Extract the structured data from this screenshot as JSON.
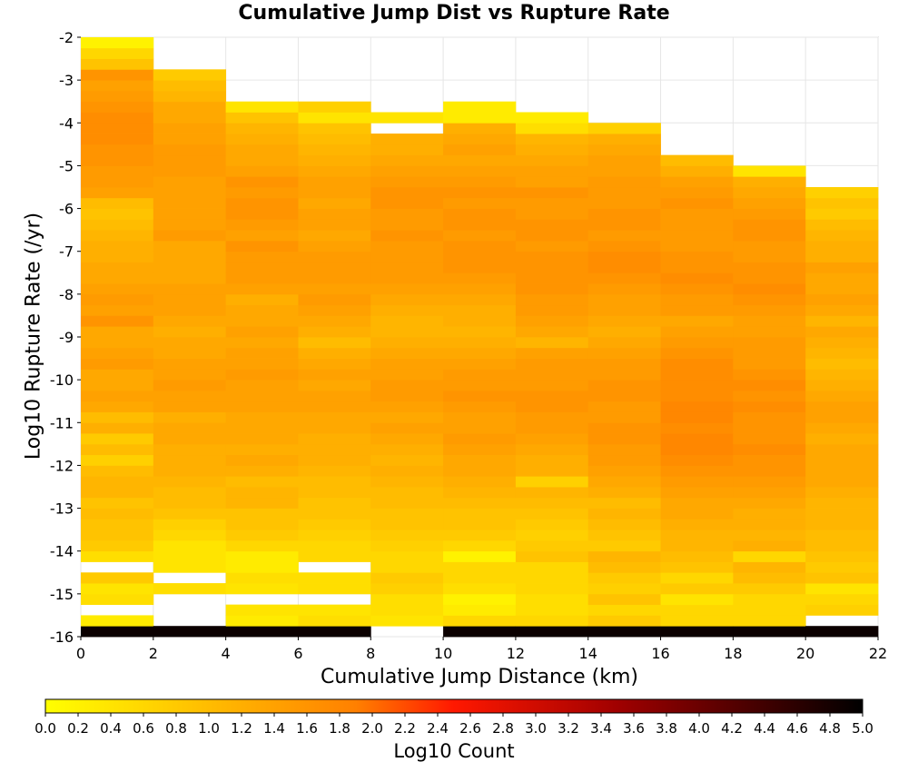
{
  "chart_data": {
    "type": "heatmap",
    "title": "Cumulative Jump Dist vs Rupture Rate",
    "xlabel": "Cumulative Jump Distance (km)",
    "ylabel": "Log10 Rupture Rate (/yr)",
    "colorbar_label": "Log10 Count",
    "xlim": [
      0,
      22
    ],
    "ylim": [
      -16,
      -2
    ],
    "x_ticks": [
      0,
      2,
      4,
      6,
      8,
      10,
      12,
      14,
      16,
      18,
      20,
      22
    ],
    "y_ticks": [
      -2,
      -3,
      -4,
      -5,
      -6,
      -7,
      -8,
      -9,
      -10,
      -11,
      -12,
      -13,
      -14,
      -15,
      -16
    ],
    "colorbar_range": [
      0.0,
      5.0
    ],
    "colorbar_ticks": [
      "0.0",
      "0.2",
      "0.4",
      "0.6",
      "0.8",
      "1.0",
      "1.2",
      "1.4",
      "1.6",
      "1.8",
      "2.0",
      "2.2",
      "2.4",
      "2.6",
      "2.8",
      "3.0",
      "3.2",
      "3.4",
      "3.6",
      "3.8",
      "4.0",
      "4.2",
      "4.4",
      "4.6",
      "4.8",
      "5.0"
    ],
    "colormap": [
      "#ffff00",
      "#ff8000",
      "#ff0000",
      "#000000"
    ],
    "grid": true,
    "x_bin_edges": [
      0,
      2,
      4,
      6,
      8,
      10,
      12,
      14,
      16,
      18,
      20,
      22
    ],
    "y_bin_width": 0.25,
    "y_bin_start": -16,
    "columns": [
      [
        4.9,
        0.3,
        null,
        0.5,
        0.4,
        0.8,
        null,
        0.5,
        0.8,
        0.9,
        0.9,
        1.0,
        0.9,
        1.1,
        1.1,
        1.0,
        0.7,
        1.0,
        0.8,
        1.2,
        1.0,
        1.3,
        1.4,
        1.3,
        1.3,
        1.5,
        1.4,
        1.3,
        1.3,
        1.6,
        1.4,
        1.5,
        1.4,
        1.3,
        1.3,
        1.2,
        1.2,
        1.1,
        1.0,
        0.9,
        1.0,
        1.4,
        1.5,
        1.5,
        1.6,
        1.6,
        1.7,
        1.7,
        1.7,
        1.6,
        1.5,
        1.4,
        1.6,
        0.9,
        0.6,
        0.2
      ],
      [
        4.9,
        null,
        null,
        null,
        0.5,
        null,
        0.4,
        0.4,
        0.4,
        0.6,
        0.7,
        0.9,
        1.0,
        1.0,
        1.1,
        1.2,
        1.2,
        1.2,
        1.3,
        1.3,
        1.2,
        1.4,
        1.4,
        1.5,
        1.4,
        1.4,
        1.3,
        1.3,
        1.2,
        1.3,
        1.4,
        1.4,
        1.4,
        1.3,
        1.3,
        1.3,
        1.3,
        1.5,
        1.4,
        1.4,
        1.4,
        1.4,
        1.4,
        1.5,
        1.5,
        1.5,
        1.4,
        1.4,
        1.3,
        1.3,
        1.1,
        1.0,
        0.8
      ],
      [
        4.9,
        0.3,
        0.4,
        null,
        0.4,
        0.5,
        0.3,
        0.3,
        0.6,
        0.8,
        0.9,
        0.9,
        1.1,
        1.1,
        1.0,
        1.2,
        1.3,
        1.2,
        1.3,
        1.3,
        1.3,
        1.4,
        1.4,
        1.4,
        1.5,
        1.4,
        1.4,
        1.3,
        1.4,
        1.3,
        1.3,
        1.2,
        1.4,
        1.5,
        1.5,
        1.5,
        1.6,
        1.4,
        1.5,
        1.6,
        1.6,
        1.5,
        1.6,
        1.4,
        1.3,
        1.3,
        1.2,
        1.1,
        0.9,
        0.4
      ],
      [
        4.9,
        0.5,
        0.4,
        null,
        0.5,
        0.5,
        null,
        0.6,
        0.6,
        0.7,
        0.8,
        0.9,
        0.9,
        1.0,
        1.0,
        1.1,
        1.2,
        1.2,
        1.2,
        1.3,
        1.3,
        1.4,
        1.4,
        1.3,
        1.4,
        1.3,
        1.2,
        1.0,
        1.2,
        1.3,
        1.4,
        1.5,
        1.4,
        1.5,
        1.5,
        1.5,
        1.4,
        1.3,
        1.4,
        1.4,
        1.3,
        1.4,
        1.4,
        1.3,
        1.2,
        1.1,
        1.0,
        0.9,
        0.4,
        0.7
      ],
      [
        null,
        0.4,
        0.5,
        0.5,
        0.7,
        0.8,
        0.6,
        0.6,
        0.7,
        0.8,
        0.9,
        0.9,
        1.0,
        1.0,
        1.1,
        1.2,
        1.1,
        1.2,
        1.3,
        1.4,
        1.3,
        1.4,
        1.5,
        1.5,
        1.4,
        1.4,
        1.3,
        1.2,
        1.1,
        1.1,
        1.2,
        1.3,
        1.4,
        1.5,
        1.5,
        1.5,
        1.5,
        1.6,
        1.5,
        1.5,
        1.6,
        1.6,
        1.5,
        1.4,
        1.3,
        1.2,
        1.2,
        null,
        0.4
      ],
      [
        4.9,
        0.6,
        0.3,
        0.2,
        0.5,
        0.6,
        0.6,
        0.2,
        0.6,
        0.8,
        0.9,
        0.9,
        1.0,
        1.1,
        1.2,
        1.3,
        1.3,
        1.4,
        1.5,
        1.4,
        1.4,
        1.5,
        1.6,
        1.5,
        1.5,
        1.4,
        1.3,
        1.2,
        1.1,
        1.2,
        1.2,
        1.3,
        1.4,
        1.5,
        1.6,
        1.6,
        1.6,
        1.5,
        1.6,
        1.6,
        1.5,
        1.6,
        1.5,
        1.4,
        1.3,
        1.4,
        1.3,
        1.2,
        0.3,
        0.3
      ],
      [
        4.9,
        0.6,
        0.5,
        0.5,
        0.6,
        0.6,
        0.6,
        0.9,
        0.8,
        0.7,
        0.8,
        0.9,
        1.0,
        1.1,
        0.7,
        1.2,
        1.2,
        1.3,
        1.4,
        1.5,
        1.5,
        1.6,
        1.6,
        1.5,
        1.5,
        1.5,
        1.4,
        1.1,
        1.3,
        1.4,
        1.5,
        1.5,
        1.6,
        1.6,
        1.6,
        1.6,
        1.5,
        1.6,
        1.6,
        1.5,
        1.5,
        1.6,
        1.4,
        1.4,
        1.3,
        1.2,
        1.1,
        0.5,
        0.3
      ],
      [
        4.9,
        0.8,
        0.6,
        0.9,
        0.7,
        0.8,
        1.0,
        1.1,
        0.8,
        0.9,
        1.0,
        1.1,
        1.0,
        1.2,
        1.3,
        1.4,
        1.5,
        1.5,
        1.6,
        1.6,
        1.5,
        1.5,
        1.6,
        1.6,
        1.5,
        1.5,
        1.4,
        1.3,
        1.2,
        1.3,
        1.4,
        1.4,
        1.5,
        1.6,
        1.7,
        1.7,
        1.6,
        1.5,
        1.6,
        1.6,
        1.5,
        1.5,
        1.5,
        1.4,
        1.4,
        1.3,
        1.2,
        0.7
      ],
      [
        4.9,
        0.6,
        0.6,
        0.4,
        0.8,
        0.6,
        0.9,
        1.0,
        1.1,
        1.1,
        1.2,
        1.3,
        1.3,
        1.4,
        1.5,
        1.6,
        1.7,
        1.8,
        1.8,
        1.7,
        1.8,
        1.8,
        1.7,
        1.7,
        1.7,
        1.7,
        1.6,
        1.5,
        1.4,
        1.3,
        1.5,
        1.5,
        1.6,
        1.7,
        1.6,
        1.6,
        1.5,
        1.5,
        1.5,
        1.5,
        1.6,
        1.5,
        1.4,
        1.2,
        1.0
      ],
      [
        4.9,
        0.6,
        0.6,
        0.6,
        0.8,
        1.0,
        1.1,
        0.6,
        1.2,
        1.1,
        1.2,
        1.2,
        1.3,
        1.4,
        1.5,
        1.6,
        1.6,
        1.7,
        1.6,
        1.6,
        1.6,
        1.7,
        1.6,
        1.7,
        1.6,
        1.5,
        1.5,
        1.5,
        1.4,
        1.4,
        1.5,
        1.6,
        1.7,
        1.6,
        1.6,
        1.5,
        1.5,
        1.6,
        1.6,
        1.5,
        1.4,
        1.3,
        1.2,
        0.4
      ],
      [
        4.9,
        null,
        0.7,
        0.6,
        0.4,
        0.9,
        0.8,
        0.9,
        1.0,
        1.0,
        1.1,
        1.1,
        1.1,
        1.2,
        1.3,
        1.3,
        1.3,
        1.3,
        1.2,
        1.3,
        1.4,
        1.4,
        1.3,
        1.2,
        1.1,
        1.0,
        1.1,
        1.2,
        1.3,
        1.1,
        1.3,
        1.4,
        1.3,
        1.3,
        1.4,
        1.2,
        1.2,
        1.1,
        1.0,
        0.8,
        0.9,
        0.7
      ]
    ]
  },
  "colorbar": {
    "ticks": [
      "0.0",
      "0.2",
      "0.4",
      "0.6",
      "0.8",
      "1.0",
      "1.2",
      "1.4",
      "1.6",
      "1.8",
      "2.0",
      "2.2",
      "2.4",
      "2.6",
      "2.8",
      "3.0",
      "3.2",
      "3.4",
      "3.6",
      "3.8",
      "4.0",
      "4.2",
      "4.4",
      "4.6",
      "4.8",
      "5.0"
    ]
  }
}
